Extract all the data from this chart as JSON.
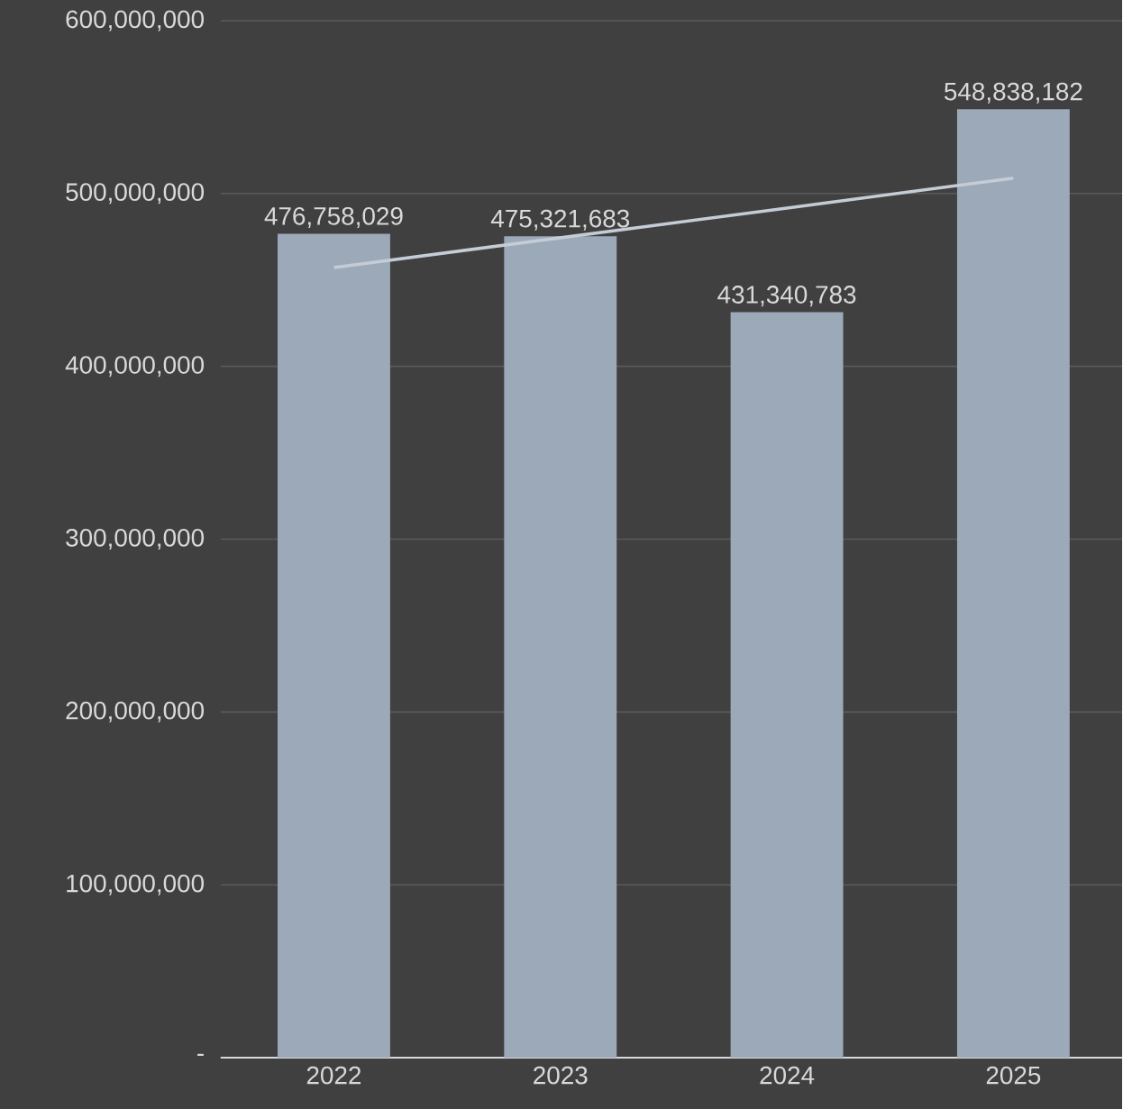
{
  "chart_data": {
    "type": "bar",
    "categories": [
      "2022",
      "2023",
      "2024",
      "2025"
    ],
    "series": [
      {
        "color": "#9ba9b9",
        "values": [
          476758029,
          475321683,
          431340783,
          548838182
        ],
        "value_labels": [
          "476,758,029",
          "475,321,683",
          "431,340,783",
          "548,838,182"
        ]
      },
      {
        "type": "line",
        "color": "#c4ccd6",
        "values": [
          457200000,
          474400000,
          491600000,
          508900000
        ]
      }
    ],
    "ylim": [
      0,
      600000000
    ],
    "yticks": [
      {
        "value": 0,
        "label": "-"
      },
      {
        "value": 100000000,
        "label": "100,000,000"
      },
      {
        "value": 200000000,
        "label": "200,000,000"
      },
      {
        "value": 300000000,
        "label": "300,000,000"
      },
      {
        "value": 400000000,
        "label": "400,000,000"
      },
      {
        "value": 500000000,
        "label": "500,000,000"
      },
      {
        "value": 600000000,
        "label": "600,000,000"
      }
    ],
    "grid": "y"
  }
}
